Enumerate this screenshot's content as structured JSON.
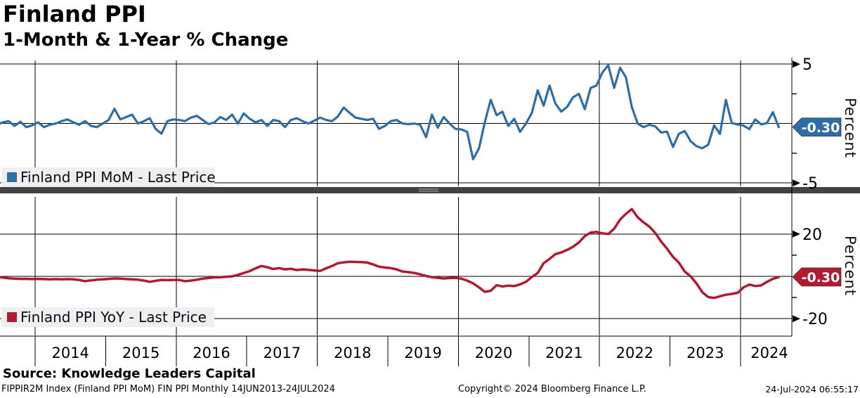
{
  "header": {
    "title": "Finland PPI",
    "subtitle": "1-Month & 1-Year % Change"
  },
  "panels": {
    "top": {
      "legend": "Finland PPI MoM - Last Price",
      "tag": "-0.30",
      "axis_label": "Percent"
    },
    "bottom": {
      "legend": "Finland PPI YoY - Last Price",
      "tag": "-0.30",
      "axis_label": "Percent"
    }
  },
  "xaxis": {
    "years": [
      "2014",
      "2015",
      "2016",
      "2017",
      "2018",
      "2019",
      "2020",
      "2021",
      "2022",
      "2023",
      "2024"
    ]
  },
  "footer": {
    "source": "Source: Knowledge Leaders Capital",
    "ticker": "FIPPIR2M Index (Finland PPI MoM) FIN PPI  Monthly 14JUN2013-24JUL2024",
    "copyright": "Copyright© 2024 Bloomberg Finance L.P.",
    "timestamp": "24-Jul-2024 06:55:17"
  },
  "colors": {
    "mom_line": "#2f6da6",
    "yoy_line": "#b11a31",
    "legend_bg": "#efefef",
    "separator": "#424242",
    "grid": "#000000",
    "tag_text": "#ffffff"
  },
  "chart_data": [
    {
      "type": "line",
      "name": "Finland PPI MoM - Last Price",
      "ylabel": "Percent",
      "x_start": "2013-06",
      "x_end": "2024-07",
      "freq": "monthly",
      "last_price": -0.3,
      "ylim": [
        -5.6,
        5.6
      ],
      "yticks_labeled": [
        5,
        -5
      ],
      "yticks_minor": [
        2.5,
        -2.5
      ],
      "gridlines_y": [
        5,
        0,
        -5
      ],
      "values": [
        -0.1,
        0.1,
        0.2,
        -0.2,
        0.15,
        -0.3,
        -0.15,
        0.1,
        -0.3,
        -0.1,
        0.0,
        0.2,
        0.35,
        0.1,
        -0.1,
        0.2,
        -0.2,
        -0.3,
        0.0,
        0.3,
        1.25,
        0.35,
        0.55,
        0.75,
        0.0,
        0.2,
        0.45,
        -0.45,
        -0.85,
        0.2,
        0.35,
        0.3,
        0.2,
        0.5,
        0.65,
        0.3,
        -0.05,
        0.1,
        0.55,
        0.3,
        0.75,
        0.0,
        0.85,
        0.4,
        0.1,
        0.3,
        -0.2,
        0.3,
        0.2,
        -0.3,
        0.3,
        0.45,
        0.2,
        0.0,
        0.25,
        0.5,
        0.3,
        0.2,
        0.6,
        1.35,
        0.9,
        0.5,
        0.4,
        0.3,
        0.4,
        -0.45,
        -0.2,
        0.2,
        0.3,
        0.0,
        -0.05,
        0.0,
        -0.1,
        -1.15,
        0.75,
        -0.35,
        0.55,
        0.0,
        -0.45,
        -0.5,
        -0.7,
        -3.0,
        -2.1,
        0.1,
        2.0,
        0.7,
        1.0,
        -0.2,
        0.4,
        -0.7,
        0.0,
        0.9,
        2.8,
        1.5,
        3.2,
        1.7,
        1.0,
        1.4,
        2.2,
        2.5,
        1.2,
        3.0,
        3.2,
        4.3,
        4.9,
        3.0,
        4.7,
        3.9,
        1.4,
        0.0,
        -0.3,
        -0.1,
        -0.25,
        -0.76,
        -0.68,
        -1.97,
        -0.87,
        -0.63,
        -1.48,
        -1.9,
        -2.08,
        -1.78,
        -0.15,
        -0.87,
        2.0,
        0.05,
        -0.07,
        -0.17,
        -0.47,
        0.35,
        -0.07,
        0.05,
        0.96,
        -0.3
      ]
    },
    {
      "type": "line",
      "name": "Finland PPI YoY - Last Price",
      "ylabel": "Percent",
      "x_start": "2013-06",
      "x_end": "2024-07",
      "freq": "monthly",
      "last_price": -0.3,
      "ylim": [
        -28,
        39
      ],
      "yticks_labeled": [
        20,
        -20
      ],
      "yticks_minor": [
        10,
        -10
      ],
      "gridlines_y": [
        20,
        0,
        -20
      ],
      "values": [
        -0.3,
        -0.6,
        -0.9,
        -1.1,
        -1.2,
        -1.2,
        -1.3,
        -1.2,
        -1.3,
        -1.4,
        -1.3,
        -1.4,
        -1.3,
        -1.4,
        -1.7,
        -2.3,
        -1.9,
        -1.6,
        -1.4,
        -1.2,
        -1.0,
        -1.1,
        -1.3,
        -1.4,
        -1.6,
        -2.0,
        -2.6,
        -2.1,
        -1.7,
        -1.8,
        -1.7,
        -1.7,
        -2.3,
        -2.0,
        -1.6,
        -1.1,
        -0.8,
        -0.5,
        -0.4,
        -0.2,
        0.0,
        0.7,
        1.6,
        2.5,
        3.8,
        4.9,
        4.3,
        3.5,
        3.9,
        3.3,
        3.6,
        3.0,
        3.3,
        3.1,
        2.8,
        2.6,
        3.8,
        4.9,
        6.2,
        6.6,
        6.9,
        6.8,
        6.7,
        6.5,
        5.6,
        4.6,
        4.2,
        3.9,
        3.3,
        2.3,
        2.0,
        1.6,
        1.0,
        0.2,
        -0.4,
        -0.7,
        -1.0,
        -0.8,
        -0.7,
        -1.1,
        -2.0,
        -3.3,
        -5.2,
        -7.3,
        -6.8,
        -4.2,
        -4.8,
        -4.4,
        -4.6,
        -3.8,
        -2.6,
        -0.3,
        1.6,
        6.2,
        8.2,
        10.5,
        11.3,
        12.5,
        14.0,
        16.0,
        19.0,
        20.7,
        21.0,
        20.3,
        20.0,
        22.5,
        26.8,
        29.5,
        31.8,
        27.9,
        25.5,
        23.5,
        20.5,
        16.4,
        13.1,
        9.2,
        6.5,
        2.3,
        0.0,
        -3.3,
        -7.5,
        -9.8,
        -10.2,
        -9.4,
        -8.7,
        -8.3,
        -7.8,
        -5.2,
        -3.9,
        -4.6,
        -4.3,
        -2.6,
        -1.2,
        -0.3
      ]
    }
  ]
}
